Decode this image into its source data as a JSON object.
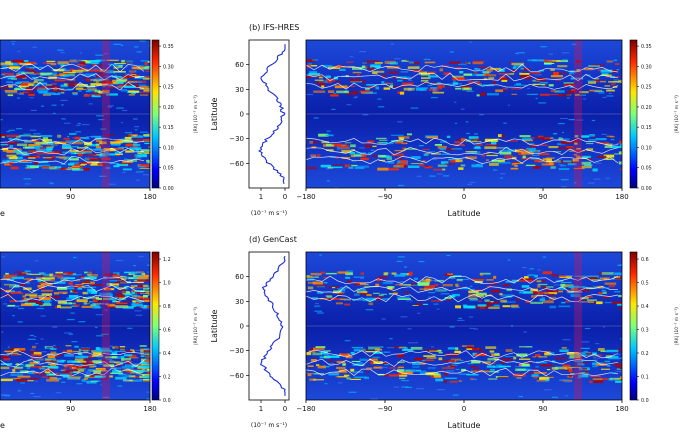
{
  "panels": [
    {
      "label": "",
      "map": {
        "xticks": [
          "90",
          "180"
        ],
        "xlabel_partial": "e"
      },
      "colorbar": {
        "ticks": [
          "0.00",
          "0.05",
          "0.10",
          "0.15",
          "0.20",
          "0.25",
          "0.30",
          "0.35"
        ],
        "label": "|RK| (10⁻⁷ m s⁻¹)"
      }
    },
    {
      "label": "(b) IFS-HRES",
      "profile": {
        "yticks": [
          "60",
          "30",
          "0",
          "−30",
          "−60"
        ],
        "ylabel": "Latitude",
        "xticks": [
          "1",
          "0"
        ],
        "unit": "(10⁻⁷ m s⁻¹)"
      },
      "map": {
        "xticks": [
          "−180",
          "−90",
          "0",
          "90",
          "180"
        ],
        "xlabel": "Latitude"
      },
      "colorbar": {
        "ticks": [
          "0.00",
          "0.05",
          "0.10",
          "0.15",
          "0.20",
          "0.25",
          "0.30",
          "0.35"
        ],
        "label": "|RK| (10⁻⁷ m s⁻¹)"
      }
    },
    {
      "label": "",
      "map": {
        "xticks": [
          "90",
          "180"
        ],
        "xlabel_partial": "e"
      },
      "colorbar": {
        "ticks": [
          "0.0",
          "0.2",
          "0.4",
          "0.6",
          "0.8",
          "1.0",
          "1.2"
        ],
        "label": "|RK| (10⁻⁷ m s⁻¹)"
      }
    },
    {
      "label": "(d) GenCast",
      "profile": {
        "yticks": [
          "60",
          "30",
          "0",
          "−30",
          "−60"
        ],
        "ylabel": "Latitude",
        "xticks": [
          "1",
          "0"
        ],
        "unit": "(10⁻⁷ m s⁻¹)"
      },
      "map": {
        "xticks": [
          "−180",
          "−90",
          "0",
          "90",
          "180"
        ],
        "xlabel": "Latitude"
      },
      "colorbar": {
        "ticks": [
          "0.0",
          "0.1",
          "0.2",
          "0.3",
          "0.4",
          "0.5",
          "0.6"
        ],
        "label": "|RK| (10⁻⁷ m s⁻¹)"
      }
    }
  ],
  "chart_data": [
    {
      "type": "heatmap",
      "panel": "a (cropped)",
      "x_range": [
        -180,
        180
      ],
      "y_range": [
        -90,
        90
      ],
      "colorscale": "jet",
      "clim": [
        0,
        0.35
      ],
      "band_latitudes": [
        45,
        -45
      ],
      "highlight_lon": 130
    },
    {
      "type": "line",
      "panel": "b profile",
      "y": [
        -75,
        -60,
        -45,
        -30,
        -15,
        0,
        15,
        30,
        45,
        60,
        75
      ],
      "x": [
        0.1,
        0.55,
        0.85,
        0.6,
        0.2,
        0.05,
        0.2,
        0.55,
        0.8,
        0.45,
        0.1
      ]
    },
    {
      "type": "heatmap",
      "panel": "b",
      "x_range": [
        -180,
        180
      ],
      "y_range": [
        -90,
        90
      ],
      "colorscale": "jet",
      "clim": [
        0,
        0.35
      ],
      "band_latitudes": [
        45,
        -45
      ],
      "highlight_lon": 130
    },
    {
      "type": "heatmap",
      "panel": "c (cropped)",
      "x_range": [
        -180,
        180
      ],
      "y_range": [
        -90,
        90
      ],
      "colorscale": "jet",
      "clim": [
        0,
        1.3
      ],
      "band_latitudes": [
        45,
        -45
      ],
      "highlight_lon": 130
    },
    {
      "type": "line",
      "panel": "d profile",
      "y": [
        -75,
        -60,
        -45,
        -30,
        -15,
        0,
        15,
        30,
        45,
        60,
        75
      ],
      "x": [
        0.1,
        0.5,
        0.8,
        0.55,
        0.25,
        0.1,
        0.25,
        0.5,
        0.75,
        0.4,
        0.1
      ]
    },
    {
      "type": "heatmap",
      "panel": "d",
      "x_range": [
        -180,
        180
      ],
      "y_range": [
        -90,
        90
      ],
      "colorscale": "jet",
      "clim": [
        0,
        0.6
      ],
      "band_latitudes": [
        45,
        -45
      ],
      "highlight_lon": 130
    }
  ]
}
